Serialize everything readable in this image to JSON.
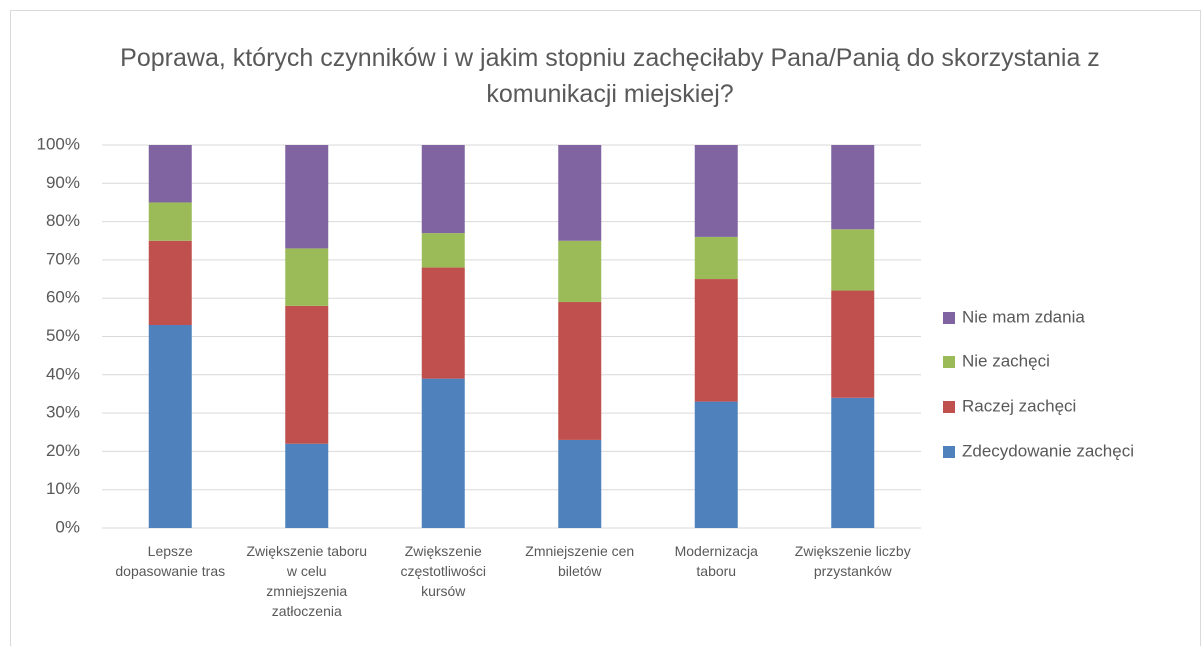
{
  "chart_data": {
    "type": "stacked_bar_100",
    "title": "Poprawa, których czynników i w jakim stopniu zachęciłaby Pana/Panią do skorzystania z komunikacji miejskiej?",
    "categories": [
      "Lepsze dopasowanie tras",
      "Zwiększenie taboru w celu zmniejszenia zatłoczenia",
      "Zwiększenie częstotliwości kursów",
      "Zmniejszenie cen biletów",
      "Modernizacja taboru",
      "Zwiększenie liczby przystanków"
    ],
    "series": [
      {
        "name": "Zdecydowanie zachęci",
        "color": "#4f81bd",
        "values": [
          53,
          22,
          39,
          23,
          33,
          34
        ]
      },
      {
        "name": "Raczej zachęci",
        "color": "#c0504d",
        "values": [
          22,
          36,
          29,
          36,
          32,
          28
        ]
      },
      {
        "name": "Nie zachęci",
        "color": "#9bbb59",
        "values": [
          10,
          15,
          9,
          16,
          11,
          16
        ]
      },
      {
        "name": "Nie mam zdania",
        "color": "#8064a2",
        "values": [
          15,
          27,
          23,
          25,
          24,
          22
        ]
      }
    ],
    "ylim": [
      0,
      100
    ],
    "yticks": [
      {
        "value": 0,
        "label": "0%"
      },
      {
        "value": 10,
        "label": "10%"
      },
      {
        "value": 20,
        "label": "20%"
      },
      {
        "value": 30,
        "label": "30%"
      },
      {
        "value": 40,
        "label": "40%"
      },
      {
        "value": 50,
        "label": "50%"
      },
      {
        "value": 60,
        "label": "60%"
      },
      {
        "value": 70,
        "label": "70%"
      },
      {
        "value": 80,
        "label": "80%"
      },
      {
        "value": 90,
        "label": "90%"
      },
      {
        "value": 100,
        "label": "100%"
      }
    ],
    "grid": true,
    "legend": "right"
  }
}
